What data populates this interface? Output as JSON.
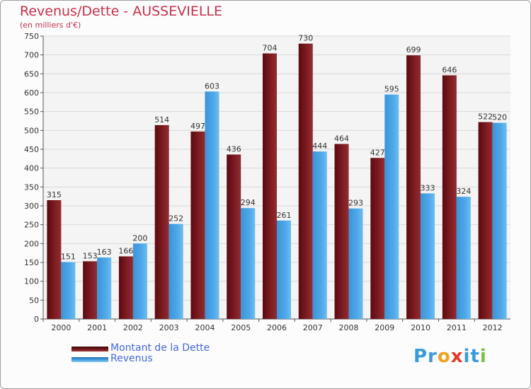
{
  "chart_data": {
    "type": "bar",
    "title": "Revenus/Dette - AUSSEVIELLE",
    "subtitle": "(en milliers d'€)",
    "categories": [
      "2000",
      "2001",
      "2002",
      "2003",
      "2004",
      "2005",
      "2006",
      "2007",
      "2008",
      "2009",
      "2010",
      "2011",
      "2012"
    ],
    "series": [
      {
        "name": "Montant de la Dette",
        "color": "#7a1a1f",
        "values": [
          315,
          153,
          166,
          514,
          497,
          436,
          704,
          730,
          464,
          427,
          699,
          646,
          522
        ]
      },
      {
        "name": "Revenus",
        "color": "#4ea8e8",
        "values": [
          151,
          163,
          200,
          252,
          603,
          294,
          261,
          444,
          293,
          595,
          333,
          324,
          520
        ]
      }
    ],
    "ylim": [
      0,
      750
    ],
    "yticks": [
      0,
      50,
      100,
      150,
      200,
      250,
      300,
      350,
      400,
      450,
      500,
      550,
      600,
      650,
      700,
      750
    ],
    "grid": true,
    "legend_position": "bottom-left"
  },
  "logo_text": "Proxiti"
}
